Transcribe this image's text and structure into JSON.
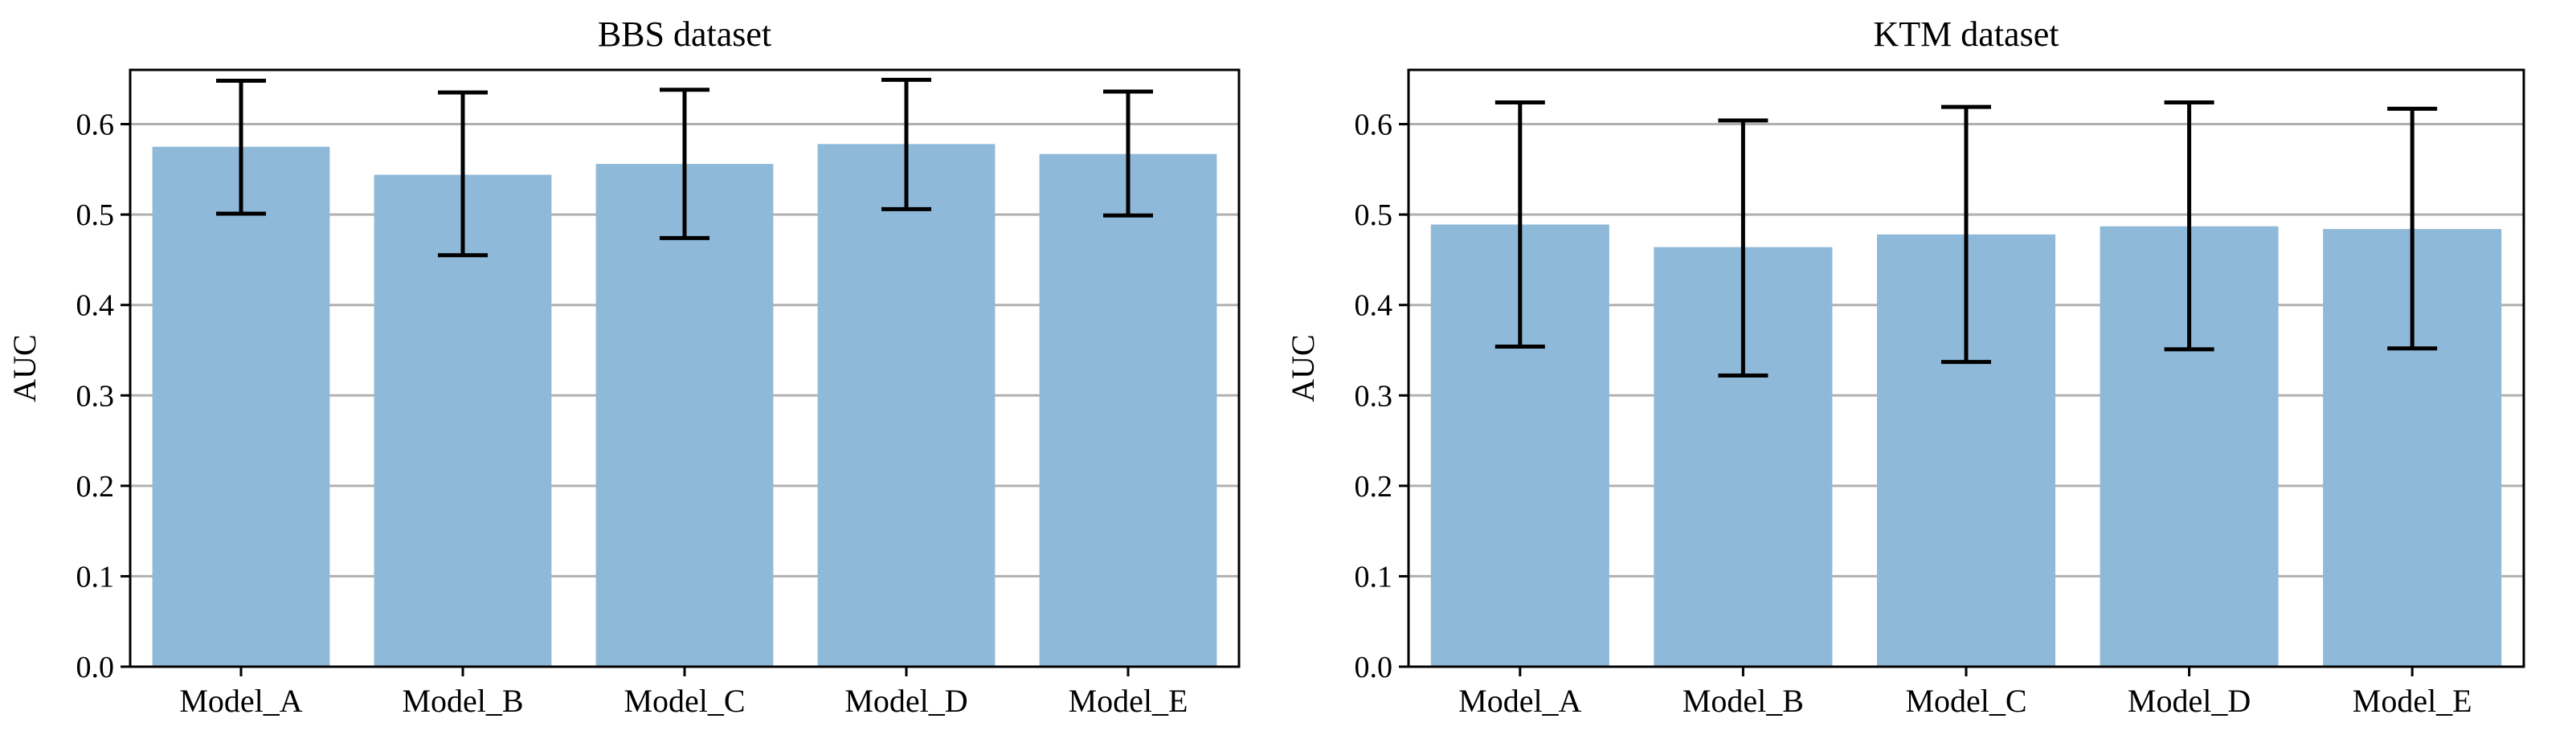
{
  "chart_data": [
    {
      "type": "bar",
      "title": "BBS dataset",
      "xlabel": "",
      "ylabel": "AUC",
      "ylim": [
        0,
        0.66
      ],
      "yticks": [
        0.0,
        0.1,
        0.2,
        0.3,
        0.4,
        0.5,
        0.6
      ],
      "ytick_labels": [
        "0.0",
        "0.1",
        "0.2",
        "0.3",
        "0.4",
        "0.5",
        "0.6"
      ],
      "grid": "y",
      "bar_color": "#8fb9d9",
      "categories": [
        "Model_A",
        "Model_B",
        "Model_C",
        "Model_D",
        "Model_E"
      ],
      "values": [
        0.575,
        0.544,
        0.556,
        0.578,
        0.567
      ],
      "error_low": [
        0.501,
        0.455,
        0.474,
        0.506,
        0.499
      ],
      "error_high": [
        0.648,
        0.635,
        0.638,
        0.649,
        0.636
      ]
    },
    {
      "type": "bar",
      "title": "KTM dataset",
      "xlabel": "",
      "ylabel": "AUC",
      "ylim": [
        0,
        0.66
      ],
      "yticks": [
        0.0,
        0.1,
        0.2,
        0.3,
        0.4,
        0.5,
        0.6
      ],
      "ytick_labels": [
        "0.0",
        "0.1",
        "0.2",
        "0.3",
        "0.4",
        "0.5",
        "0.6"
      ],
      "grid": "y",
      "bar_color": "#8fb9d9",
      "categories": [
        "Model_A",
        "Model_B",
        "Model_C",
        "Model_D",
        "Model_E"
      ],
      "values": [
        0.489,
        0.464,
        0.478,
        0.487,
        0.484
      ],
      "error_low": [
        0.354,
        0.322,
        0.337,
        0.351,
        0.352
      ],
      "error_high": [
        0.624,
        0.604,
        0.619,
        0.624,
        0.617
      ]
    }
  ]
}
